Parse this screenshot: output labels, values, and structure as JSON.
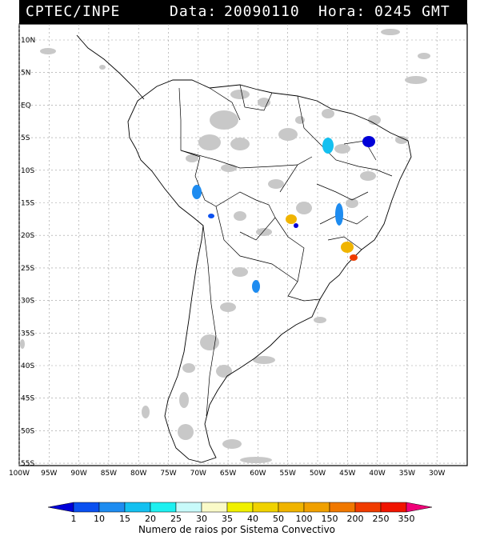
{
  "header": {
    "source": "CPTEC/INPE",
    "date_label": "Data:",
    "date_value": "20090110",
    "hour_label": "Hora:",
    "hour_value": "0245 GMT"
  },
  "map": {
    "lat_ticks": [
      "10N",
      "5N",
      "EQ",
      "5S",
      "10S",
      "15S",
      "20S",
      "25S",
      "30S",
      "35S",
      "40S",
      "45S",
      "50S",
      "55S"
    ],
    "lon_ticks": [
      "100W",
      "95W",
      "90W",
      "85W",
      "80W",
      "75W",
      "70W",
      "65W",
      "60W",
      "55W",
      "50W",
      "45W",
      "40W",
      "35W",
      "30W"
    ],
    "grid": true
  },
  "colorbar": {
    "title": "Numero de raios por Sistema Convectivo",
    "labels": [
      "1",
      "10",
      "15",
      "20",
      "25",
      "30",
      "35",
      "40",
      "50",
      "100",
      "150",
      "200",
      "250",
      "350"
    ],
    "colors": [
      "#0000d8",
      "#0a50f0",
      "#1e8cf0",
      "#14c0f0",
      "#1ef0f0",
      "#c8fafa",
      "#fafac8",
      "#f0f000",
      "#f0d200",
      "#f0b400",
      "#f0a000",
      "#f07800",
      "#f03c00",
      "#f01400",
      "#f00078"
    ]
  },
  "lightning_systems": [
    {
      "color": "#1e8cf0"
    },
    {
      "color": "#0a50f0"
    },
    {
      "color": "#14c0f0"
    },
    {
      "color": "#0000d8"
    },
    {
      "color": "#f0b400"
    },
    {
      "color": "#f03c00"
    }
  ]
}
